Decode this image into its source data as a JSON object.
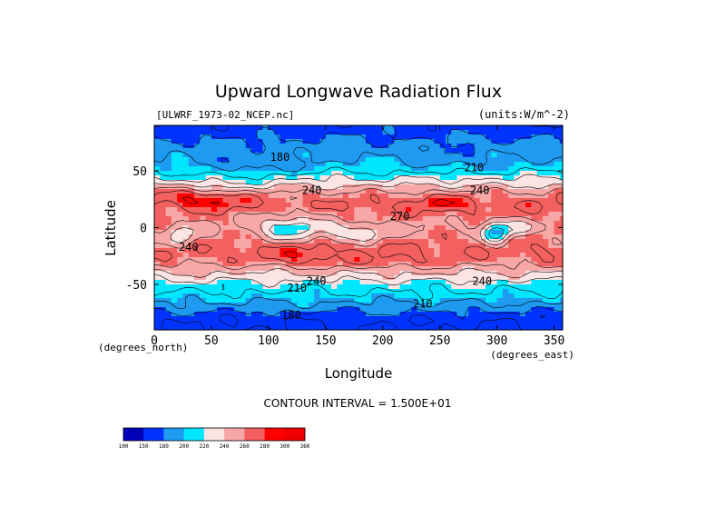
{
  "chart_data": {
    "type": "heatmap",
    "title": "Upward Longwave Radiation Flux",
    "file_label": "[ULWRF_1973-02_NCEP.nc]",
    "units_label": "(units:W/m^-2)",
    "xlabel": "Longitude",
    "ylabel": "Latitude",
    "x_units_note": "(degrees_east)",
    "y_units_note": "(degrees_north)",
    "xlim": [
      0,
      357.5
    ],
    "ylim": [
      -90,
      90
    ],
    "x_ticks": [
      0,
      50,
      100,
      150,
      200,
      250,
      300,
      350
    ],
    "y_ticks": [
      -50,
      0,
      50
    ],
    "contour_interval_label": "CONTOUR INTERVAL = 1.500E+01",
    "colorbar": {
      "levels": [
        100,
        150,
        180,
        200,
        220,
        240,
        260,
        280,
        300,
        360
      ],
      "level_labels": [
        "100",
        "150",
        "180",
        "200",
        "220",
        "240",
        "260",
        "280",
        "300",
        "360"
      ],
      "colors": [
        "#0000bb",
        "#0033ff",
        "#1e9bf0",
        "#00e6ff",
        "#fbe4e4",
        "#f8a7a7",
        "#f26060",
        "#ff0000",
        "#ee0000"
      ]
    },
    "contour_labels": [
      {
        "text": "180",
        "lon": 110,
        "lat": 62
      },
      {
        "text": "240",
        "lon": 138,
        "lat": 33
      },
      {
        "text": "210",
        "lon": 280,
        "lat": 53
      },
      {
        "text": "240",
        "lon": 285,
        "lat": 33
      },
      {
        "text": "270",
        "lon": 215,
        "lat": 10
      },
      {
        "text": "240",
        "lon": 30,
        "lat": -17
      },
      {
        "text": "240",
        "lon": 142,
        "lat": -47
      },
      {
        "text": "210",
        "lon": 125,
        "lat": -53
      },
      {
        "text": "240",
        "lon": 287,
        "lat": -47
      },
      {
        "text": "210",
        "lon": 235,
        "lat": -67
      },
      {
        "text": "180",
        "lon": 120,
        "lat": -77
      }
    ],
    "field": {
      "zonal_lat": [
        -90,
        -80,
        -70,
        -60,
        -50,
        -40,
        -30,
        -20,
        -10,
        0,
        10,
        20,
        30,
        40,
        50,
        60,
        70,
        80,
        90
      ],
      "zonal_mean": [
        165,
        168,
        188,
        205,
        218,
        240,
        262,
        270,
        262,
        255,
        262,
        270,
        258,
        232,
        208,
        195,
        188,
        178,
        170
      ]
    }
  }
}
